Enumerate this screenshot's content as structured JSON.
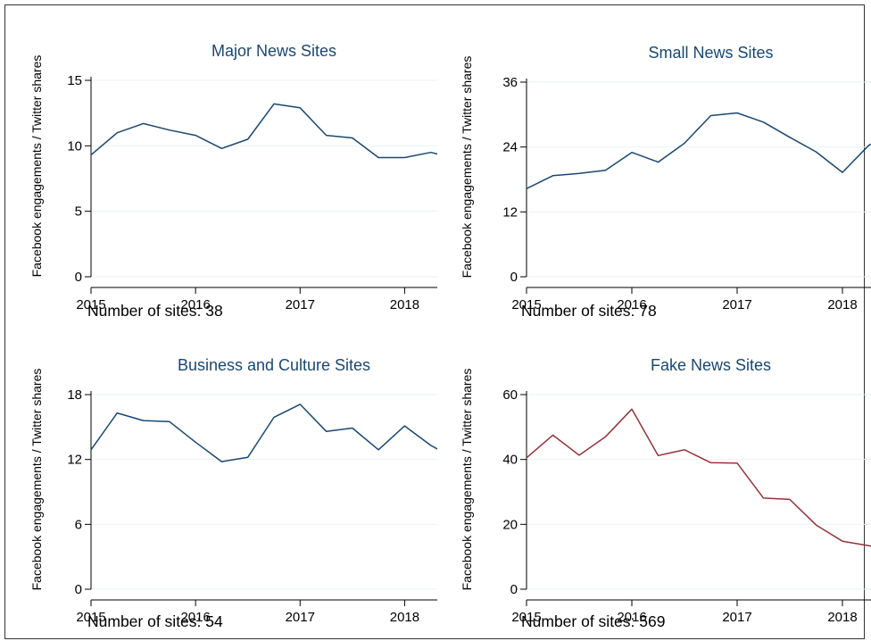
{
  "colors": {
    "main_line": "#1a476f",
    "fake_line": "#90353b",
    "title_text": "#1a476f",
    "grid": "#eaf2f3",
    "axis": "#000000"
  },
  "chart_data": [
    {
      "type": "line",
      "title": "Major News Sites",
      "ylabel": "Facebook engagements / Twitter shares",
      "xlabel": "",
      "note": "Number of sites: 38",
      "xlim": [
        2015,
        2018.5
      ],
      "ylim": [
        0,
        15
      ],
      "xticks": [
        2015,
        2016,
        2017,
        2018
      ],
      "yticks": [
        0,
        5,
        10,
        15
      ],
      "color": "#1a476f",
      "x": [
        2015,
        2015.25,
        2015.5,
        2015.75,
        2016,
        2016.25,
        2016.5,
        2016.75,
        2017,
        2017.25,
        2017.5,
        2017.75,
        2018,
        2018.25,
        2018.5
      ],
      "y": [
        9.3,
        11.0,
        11.7,
        11.2,
        10.8,
        9.8,
        10.5,
        13.2,
        12.9,
        10.8,
        10.6,
        9.1,
        9.1,
        9.5,
        9.0
      ]
    },
    {
      "type": "line",
      "title": "Small News Sites",
      "ylabel": "Facebook engagements / Twitter shares",
      "xlabel": "",
      "note": "Number of sites: 78",
      "xlim": [
        2015,
        2018.5
      ],
      "ylim": [
        0,
        36
      ],
      "xticks": [
        2015,
        2016,
        2017,
        2018
      ],
      "yticks": [
        0,
        12,
        24,
        36
      ],
      "color": "#1a476f",
      "x": [
        2015,
        2015.25,
        2015.5,
        2015.75,
        2016,
        2016.25,
        2016.5,
        2016.75,
        2017,
        2017.25,
        2017.5,
        2017.75,
        2018,
        2018.25,
        2018.5
      ],
      "y": [
        16.3,
        18.7,
        19.1,
        19.7,
        23.0,
        21.2,
        24.7,
        29.8,
        30.3,
        28.6,
        25.8,
        23.1,
        19.3,
        24.3,
        26.9
      ]
    },
    {
      "type": "line",
      "title": "Business and Culture Sites",
      "ylabel": "Facebook engagements / Twitter shares",
      "xlabel": "",
      "note": "Number of sites: 54",
      "xlim": [
        2015,
        2018.5
      ],
      "ylim": [
        0,
        18
      ],
      "xticks": [
        2015,
        2016,
        2017,
        2018
      ],
      "yticks": [
        0,
        6,
        12,
        18
      ],
      "color": "#1a476f",
      "x": [
        2015,
        2015.25,
        2015.5,
        2015.75,
        2016,
        2016.25,
        2016.5,
        2016.75,
        2017,
        2017.25,
        2017.5,
        2017.75,
        2018,
        2018.25,
        2018.5
      ],
      "y": [
        12.9,
        16.3,
        15.6,
        15.5,
        13.6,
        11.8,
        12.2,
        15.9,
        17.1,
        14.6,
        14.9,
        12.9,
        15.1,
        13.3,
        12.0
      ]
    },
    {
      "type": "line",
      "title": "Fake News Sites",
      "ylabel": "Facebook engagements / Twitter shares",
      "xlabel": "",
      "note": "Number of sites: 569",
      "xlim": [
        2015,
        2018.5
      ],
      "ylim": [
        0,
        60
      ],
      "xticks": [
        2015,
        2016,
        2017,
        2018
      ],
      "yticks": [
        0,
        20,
        40,
        60
      ],
      "color": "#90353b",
      "x": [
        2015,
        2015.25,
        2015.5,
        2015.75,
        2016,
        2016.25,
        2016.5,
        2016.75,
        2017,
        2017.25,
        2017.5,
        2017.75,
        2018,
        2018.25,
        2018.5
      ],
      "y": [
        40.5,
        47.5,
        41.3,
        47.0,
        55.5,
        41.2,
        43.0,
        39.0,
        38.9,
        28.1,
        27.7,
        19.8,
        14.8,
        13.4,
        11.8
      ]
    }
  ]
}
